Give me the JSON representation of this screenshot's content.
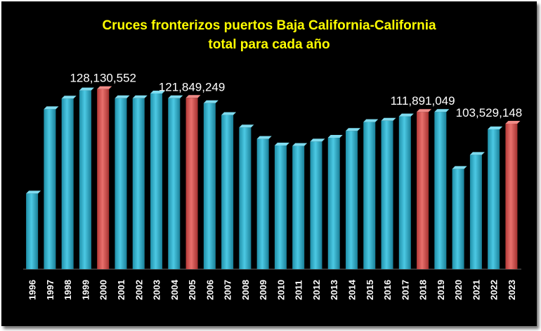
{
  "chart_data": {
    "type": "bar",
    "title": "Cruces fronterizos puertos Baja California-California",
    "subtitle": "total para cada año",
    "categories": [
      "1996",
      "1997",
      "1998",
      "1999",
      "2000",
      "2001",
      "2002",
      "2003",
      "2004",
      "2005",
      "2006",
      "2007",
      "2008",
      "2009",
      "2010",
      "2011",
      "2012",
      "2013",
      "2014",
      "2015",
      "2016",
      "2017",
      "2018",
      "2019",
      "2020",
      "2021",
      "2022",
      "2023"
    ],
    "values": [
      53800000,
      113800000,
      121400000,
      127200000,
      128130552,
      121600000,
      121600000,
      125000000,
      121600000,
      121849249,
      118100000,
      109700000,
      100800000,
      92700000,
      88000000,
      87700000,
      90800000,
      93500000,
      98400000,
      104700000,
      105600000,
      108700000,
      111891049,
      111900000,
      71300000,
      81300000,
      99500000,
      103529148
    ],
    "highlighted": [
      "2000",
      "2005",
      "2018",
      "2023"
    ],
    "data_labels": [
      {
        "category": "2000",
        "text": "128,130,552"
      },
      {
        "category": "2005",
        "text": "121,849,249"
      },
      {
        "category": "2018",
        "text": "111,891,049"
      },
      {
        "category": "2023",
        "text": "103,529,148"
      }
    ],
    "xlabel": "",
    "ylabel": "",
    "ylim": [
      0,
      140000000
    ],
    "grid": false,
    "legend": "none",
    "colors": {
      "background": "#000000",
      "title": "#ffff00",
      "bar": "#35b7d4",
      "bar_highlight": "#d9504e",
      "axis_text": "#ffffff"
    }
  }
}
